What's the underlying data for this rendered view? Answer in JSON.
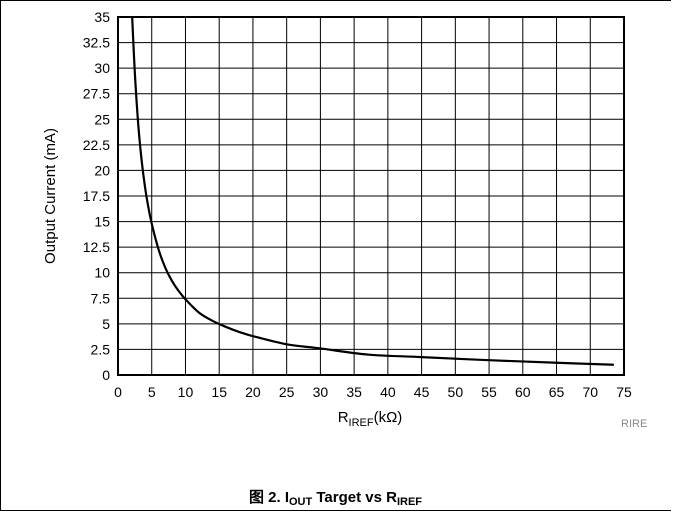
{
  "chart_data": {
    "type": "line",
    "xlabel_main": "R",
    "xlabel_sub": "IREF",
    "xlabel_unit": "(kΩ)",
    "ylabel": "Output Current (mA)",
    "xlim": [
      0,
      75
    ],
    "ylim": [
      0,
      35
    ],
    "x_ticks": [
      0,
      5,
      10,
      15,
      20,
      25,
      30,
      35,
      40,
      45,
      50,
      55,
      60,
      65,
      70,
      75
    ],
    "y_ticks": [
      0,
      2.5,
      5,
      7.5,
      10,
      12.5,
      15,
      17.5,
      20,
      22.5,
      25,
      27.5,
      30,
      32.5,
      35
    ],
    "x_tick_labels": [
      "0",
      "5",
      "10",
      "15",
      "20",
      "25",
      "30",
      "35",
      "40",
      "45",
      "50",
      "55",
      "60",
      "65",
      "70",
      "75"
    ],
    "y_tick_labels": [
      "0",
      "2.5",
      "5",
      "7.5",
      "10",
      "12.5",
      "15",
      "17.5",
      "20",
      "22.5",
      "25",
      "27.5",
      "30",
      "32.5",
      "35"
    ],
    "grid": true,
    "series": [
      {
        "x": [
          2.1,
          2.5,
          3,
          3.5,
          4,
          4.5,
          5,
          6,
          7,
          8,
          9,
          10,
          12,
          14,
          16,
          18,
          20,
          25,
          30,
          37,
          45,
          55,
          65,
          73.5
        ],
        "y": [
          35,
          29.5,
          24.5,
          21,
          18.4,
          16.4,
          14.8,
          12.3,
          10.5,
          9.2,
          8.2,
          7.4,
          6.1,
          5.3,
          4.7,
          4.2,
          3.8,
          3.0,
          2.6,
          2.0,
          1.75,
          1.45,
          1.2,
          1.0
        ]
      }
    ]
  },
  "watermark": "RIRE",
  "caption": {
    "prefix": "图 2. I",
    "sub1": "OUT",
    "middle": " Target vs R",
    "sub2": "IREF"
  },
  "colors": {
    "line": "#000000",
    "grid": "#000000",
    "background": "#ffffff"
  }
}
